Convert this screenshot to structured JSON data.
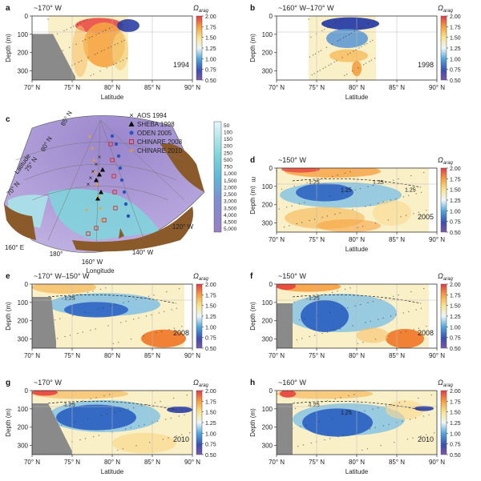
{
  "figure": {
    "panels": [
      {
        "id": "a",
        "label": "a",
        "longitude": "~170° W",
        "year": "1994",
        "omega_label": "Ω",
        "omega_sub": "arag",
        "depth_labels": [
          "0",
          "100",
          "200",
          "300"
        ],
        "lat_labels": [
          "70° N",
          "75° N",
          "80° N",
          "85° N",
          "90° N"
        ],
        "ylabel": "Depth (m)",
        "xlabel": "Latitude",
        "contours": []
      },
      {
        "id": "b",
        "label": "b",
        "longitude": "~160° W–170° W",
        "year": "1998",
        "omega_label": "Ω",
        "omega_sub": "arag",
        "depth_labels": [
          "0",
          "100",
          "200",
          "300"
        ],
        "lat_labels": [
          "70° N",
          "75° N",
          "80° N",
          "85° N",
          "90° N"
        ],
        "ylabel": "Depth (m)",
        "xlabel": "Latitude",
        "contours": []
      },
      {
        "id": "d",
        "label": "d",
        "longitude": "~150° W",
        "year": "2005",
        "omega_label": "Ω",
        "omega_sub": "arag",
        "depth_labels": [
          "0",
          "100",
          "200",
          "300"
        ],
        "lat_labels": [
          "70° N",
          "75° N",
          "80° N",
          "85° N",
          "90° N"
        ],
        "ylabel": "Depth (m)",
        "xlabel": "Latitude",
        "contours": [
          "1.25",
          "1.25",
          "1.25",
          "1.25"
        ]
      },
      {
        "id": "e",
        "label": "e",
        "longitude": "~170° W–150° W",
        "year": "2008",
        "omega_label": "Ω",
        "omega_sub": "arag",
        "depth_labels": [
          "0",
          "100",
          "200",
          "300"
        ],
        "lat_labels": [
          "70° N",
          "75° N",
          "80° N",
          "85° N",
          "90° N"
        ],
        "ylabel": "Depth (m)",
        "xlabel": "",
        "contours": [
          "1.25"
        ]
      },
      {
        "id": "f",
        "label": "f",
        "longitude": "~150° W",
        "year": "2008",
        "omega_label": "Ω",
        "omega_sub": "arag",
        "depth_labels": [
          "0",
          "100",
          "200",
          "300"
        ],
        "lat_labels": [
          "70° N",
          "75° N",
          "80° N",
          "85° N",
          "90° N"
        ],
        "ylabel": "Depth (m)",
        "xlabel": "",
        "contours": [
          "1.25"
        ]
      },
      {
        "id": "g",
        "label": "g",
        "longitude": "~170° W",
        "year": "2010",
        "omega_label": "Ω",
        "omega_sub": "arag",
        "depth_labels": [
          "0",
          "100",
          "200",
          "300"
        ],
        "lat_labels": [
          "70° N",
          "75° N",
          "80° N",
          "85° N",
          "90° N"
        ],
        "ylabel": "Depth (m)",
        "xlabel": "Latitude",
        "contours": [
          "1.25"
        ]
      },
      {
        "id": "h",
        "label": "h",
        "longitude": "~160° W",
        "year": "2010",
        "omega_label": "Ω",
        "omega_sub": "arag",
        "depth_labels": [
          "0",
          "100",
          "200",
          "300"
        ],
        "lat_labels": [
          "70° N",
          "75° N",
          "80° N",
          "85° N",
          "90° N"
        ],
        "ylabel": "Depth (m)",
        "xlabel": "Latitude",
        "contours": [
          "1.25",
          "1.25"
        ]
      }
    ],
    "colorbar_ticks": [
      "2.00",
      "1.75",
      "1.50",
      "1.25",
      "1.00",
      "0.75",
      "0.50"
    ],
    "map": {
      "label": "c",
      "legend": [
        {
          "symbol": "x",
          "label": "AOS 1994",
          "color": "#222222"
        },
        {
          "symbol": "triangle",
          "label": "SHEBA 1998",
          "color": "#000000"
        },
        {
          "symbol": "circle",
          "label": "ODEN 2005",
          "color": "#2a52be"
        },
        {
          "symbol": "square",
          "label": "CHINARE 2008",
          "color": "#d42a2a"
        },
        {
          "symbol": "plus",
          "label": "CHINARE 2010",
          "color": "#f0a020"
        }
      ],
      "lat_labels": [
        "85° N",
        "80° N",
        "75° N",
        "70° N"
      ],
      "lon_labels": [
        "160° E",
        "180°",
        "160° W",
        "140° W",
        "120° W"
      ],
      "latitude_axis": "Latitude",
      "longitude_axis": "Longitude",
      "depth_ticks": [
        "50",
        "100",
        "150",
        "200",
        "250",
        "500",
        "750",
        "1,000",
        "1,500",
        "2,000",
        "2,500",
        "3,000",
        "3,500",
        "4,000",
        "4,500",
        "5,000"
      ],
      "depth_unit": "m"
    }
  },
  "chart_data": [
    {
      "type": "heatmap",
      "panel": "a",
      "title": "~170° W",
      "xlabel": "Latitude",
      "ylabel": "Depth (m)",
      "x_ticks": [
        "70° N",
        "75° N",
        "80° N",
        "85° N",
        "90° N"
      ],
      "y_ticks": [
        "0",
        "100",
        "200",
        "300"
      ],
      "xlim": [
        70,
        90
      ],
      "ylim": [
        350,
        0
      ],
      "colorbar": "Ω arag",
      "clim": [
        0.5,
        2.0
      ],
      "annotation": "1994"
    },
    {
      "type": "heatmap",
      "panel": "b",
      "title": "~160° W–170° W",
      "xlabel": "Latitude",
      "ylabel": "Depth (m)",
      "x_ticks": [
        "70° N",
        "75° N",
        "80° N",
        "85° N",
        "90° N"
      ],
      "y_ticks": [
        "0",
        "100",
        "200",
        "300"
      ],
      "xlim": [
        70,
        90
      ],
      "ylim": [
        350,
        0
      ],
      "colorbar": "Ω arag",
      "clim": [
        0.5,
        2.0
      ],
      "annotation": "1998"
    },
    {
      "type": "heatmap",
      "panel": "d",
      "title": "~150° W",
      "xlabel": "Latitude",
      "ylabel": "Depth (m)",
      "x_ticks": [
        "70° N",
        "75° N",
        "80° N",
        "85° N",
        "90° N"
      ],
      "y_ticks": [
        "0",
        "100",
        "200",
        "300"
      ],
      "xlim": [
        70,
        90
      ],
      "ylim": [
        350,
        0
      ],
      "colorbar": "Ω arag",
      "clim": [
        0.5,
        2.0
      ],
      "annotation": "2005"
    },
    {
      "type": "heatmap",
      "panel": "e",
      "title": "~170° W–150° W",
      "ylabel": "Depth (m)",
      "x_ticks": [
        "70° N",
        "75° N",
        "80° N",
        "85° N",
        "90° N"
      ],
      "y_ticks": [
        "0",
        "100",
        "200",
        "300"
      ],
      "xlim": [
        70,
        90
      ],
      "ylim": [
        350,
        0
      ],
      "colorbar": "Ω arag",
      "clim": [
        0.5,
        2.0
      ],
      "annotation": "2008"
    },
    {
      "type": "heatmap",
      "panel": "f",
      "title": "~150° W",
      "ylabel": "Depth (m)",
      "x_ticks": [
        "70° N",
        "75° N",
        "80° N",
        "85° N",
        "90° N"
      ],
      "y_ticks": [
        "0",
        "100",
        "200",
        "300"
      ],
      "xlim": [
        70,
        90
      ],
      "ylim": [
        350,
        0
      ],
      "colorbar": "Ω arag",
      "clim": [
        0.5,
        2.0
      ],
      "annotation": "2008"
    },
    {
      "type": "heatmap",
      "panel": "g",
      "title": "~170° W",
      "xlabel": "Latitude",
      "ylabel": "Depth (m)",
      "x_ticks": [
        "70° N",
        "75° N",
        "80° N",
        "85° N",
        "90° N"
      ],
      "y_ticks": [
        "0",
        "100",
        "200",
        "300"
      ],
      "xlim": [
        70,
        90
      ],
      "ylim": [
        350,
        0
      ],
      "colorbar": "Ω arag",
      "clim": [
        0.5,
        2.0
      ],
      "annotation": "2010"
    },
    {
      "type": "heatmap",
      "panel": "h",
      "title": "~160° W",
      "xlabel": "Latitude",
      "ylabel": "Depth (m)",
      "x_ticks": [
        "70° N",
        "75° N",
        "80° N",
        "85° N",
        "90° N"
      ],
      "y_ticks": [
        "0",
        "100",
        "200",
        "300"
      ],
      "xlim": [
        70,
        90
      ],
      "ylim": [
        350,
        0
      ],
      "colorbar": "Ω arag",
      "clim": [
        0.5,
        2.0
      ],
      "annotation": "2010"
    }
  ]
}
